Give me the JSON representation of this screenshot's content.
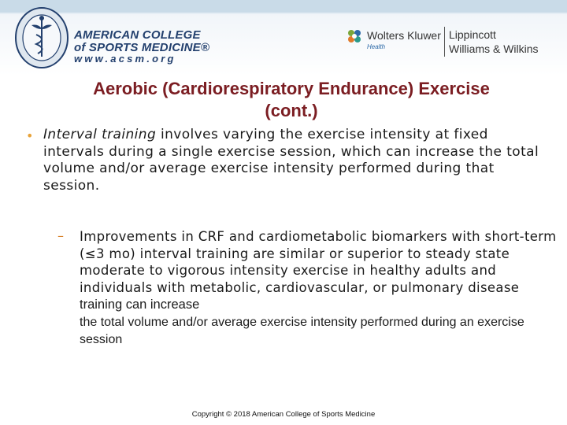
{
  "header": {
    "acsm": {
      "name_line1": "AMERICAN COLLEGE",
      "name_line2": "of SPORTS MEDICINE®",
      "url": "www.acsm.org"
    },
    "publisher": {
      "company": "Wolters Kluwer",
      "division": "Health",
      "imprint_line1": "Lippincott",
      "imprint_line2": "Williams & Wilkins"
    },
    "colors": {
      "acsm_blue": "#23406e",
      "title_red": "#7b1d22",
      "bullet_orange": "#e8a33a",
      "top_bar": "#c9dbe8"
    }
  },
  "slide": {
    "title_line1": "Aerobic (Cardiorespiratory Endurance) Exercise",
    "title_line2": "(cont.)",
    "bullet": {
      "marker": "•",
      "term": "Interval training",
      "text": " involves varying the exercise intensity at fixed intervals during a single exercise session, which can increase the total volume and/or average exercise intensity performed during that session."
    },
    "sub_bullet": {
      "marker": "–",
      "text_part1": "Improvements in CRF and cardiometabolic biomarkers with short-term (≤3 mo) interval training are similar or superior to steady state moderate to vigorous intensity exercise in healthy adults and individuals with metabolic, cardiovascular, or pulmonary disease",
      "text_part2": "training can increase",
      "text_part3": "the total volume and/or average exercise intensity performed during an exercise session"
    }
  },
  "footer": {
    "copyright": "Copyright © 2018 American College of Sports Medicine"
  }
}
